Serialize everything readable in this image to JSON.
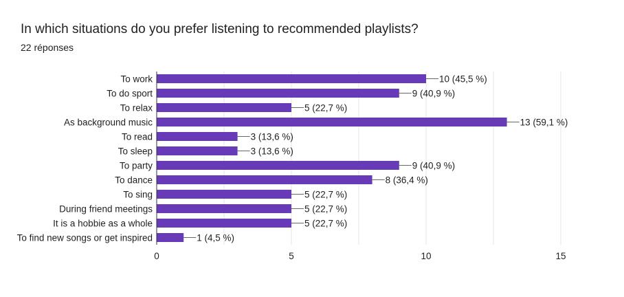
{
  "header": {
    "title": "In which situations do you prefer listening to recommended playlists?",
    "response_count": "22 réponses"
  },
  "colors": {
    "bar": "#673ab7",
    "grid": "#e6e6e6",
    "axis": "#333333",
    "leader": "#666666"
  },
  "chart_data": {
    "type": "bar",
    "orientation": "horizontal",
    "title": "In which situations do you prefer listening to recommended playlists?",
    "categories": [
      "To work",
      "To do sport",
      "To relax",
      "As background music",
      "To read",
      "To sleep",
      "To party",
      "To dance",
      "To sing",
      "During friend meetings",
      "It is a hobbie as a whole",
      "To find new songs or get inspired"
    ],
    "values": [
      10,
      9,
      5,
      13,
      3,
      3,
      9,
      8,
      5,
      5,
      5,
      1
    ],
    "data_labels": [
      "10 (45,5 %)",
      "9 (40,9 %)",
      "5 (22,7 %)",
      "13 (59,1 %)",
      "3 (13,6 %)",
      "3 (13,6 %)",
      "9 (40,9 %)",
      "8 (36,4 %)",
      "5 (22,7 %)",
      "5 (22,7 %)",
      "5 (22,7 %)",
      "1 (4,5 %)"
    ],
    "xlim": [
      0,
      15
    ],
    "xticks": [
      "0",
      "5",
      "10",
      "15"
    ],
    "grid": true
  }
}
